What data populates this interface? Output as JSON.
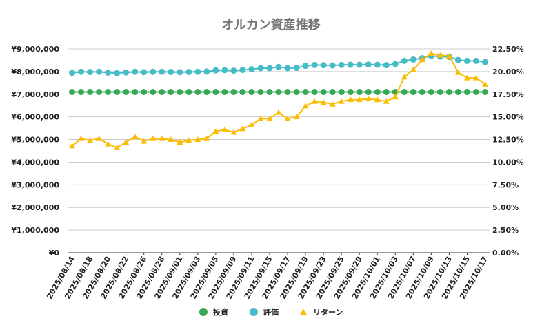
{
  "chart_data": {
    "type": "line",
    "title": "オルカン資産推移",
    "x": [
      "2025/08/14",
      "2025/08/15",
      "2025/08/18",
      "2025/08/19",
      "2025/08/20",
      "2025/08/21",
      "2025/08/22",
      "2025/08/25",
      "2025/08/26",
      "2025/08/27",
      "2025/08/28",
      "2025/08/29",
      "2025/09/01",
      "2025/09/02",
      "2025/09/03",
      "2025/09/04",
      "2025/09/05",
      "2025/09/08",
      "2025/09/09",
      "2025/09/10",
      "2025/09/11",
      "2025/09/12",
      "2025/09/15",
      "2025/09/16",
      "2025/09/17",
      "2025/09/18",
      "2025/09/19",
      "2025/09/22",
      "2025/09/23",
      "2025/09/24",
      "2025/09/25",
      "2025/09/26",
      "2025/09/29",
      "2025/09/30",
      "2025/10/01",
      "2025/10/02",
      "2025/10/03",
      "2025/10/06",
      "2025/10/07",
      "2025/10/08",
      "2025/10/09",
      "2025/10/10",
      "2025/10/13",
      "2025/10/14",
      "2025/10/15",
      "2025/10/16",
      "2025/10/17"
    ],
    "x_tick_labels": [
      "2025/08/14",
      "2025/08/18",
      "2025/08/20",
      "2025/08/22",
      "2025/08/26",
      "2025/08/28",
      "2025/09/01",
      "2025/09/03",
      "2025/09/05",
      "2025/09/09",
      "2025/09/11",
      "2025/09/15",
      "2025/09/17",
      "2025/09/19",
      "2025/09/23",
      "2025/09/25",
      "2025/09/29",
      "2025/10/01",
      "2025/10/03",
      "2025/10/07",
      "2025/10/09",
      "2025/10/13",
      "2025/10/15",
      "2025/10/17"
    ],
    "y_left_ticks": [
      "¥0",
      "¥1,000,000",
      "¥2,000,000",
      "¥3,000,000",
      "¥4,000,000",
      "¥5,000,000",
      "¥6,000,000",
      "¥7,000,000",
      "¥8,000,000",
      "¥9,000,000"
    ],
    "y_right_ticks": [
      "0.00%",
      "2.50%",
      "5.00%",
      "7.50%",
      "10.00%",
      "12.50%",
      "15.00%",
      "17.50%",
      "20.00%",
      "22.50%"
    ],
    "ylim_left": [
      0,
      9000000
    ],
    "ylim_right": [
      0,
      22.5
    ],
    "grid": true,
    "legend_position": "bottom",
    "series": [
      {
        "name": "投資",
        "axis": "left",
        "marker": "circle",
        "color": "#34a853",
        "values": [
          7100000,
          7100000,
          7100000,
          7100000,
          7100000,
          7100000,
          7100000,
          7100000,
          7100000,
          7100000,
          7100000,
          7100000,
          7100000,
          7100000,
          7100000,
          7100000,
          7100000,
          7100000,
          7100000,
          7100000,
          7100000,
          7100000,
          7100000,
          7100000,
          7100000,
          7100000,
          7100000,
          7100000,
          7100000,
          7100000,
          7100000,
          7100000,
          7100000,
          7100000,
          7100000,
          7100000,
          7100000,
          7100000,
          7100000,
          7100000,
          7100000,
          7100000,
          7100000,
          7100000,
          7100000,
          7100000,
          7100000
        ]
      },
      {
        "name": "評価",
        "axis": "left",
        "marker": "circle",
        "color": "#46bdc6",
        "values": [
          7940000,
          7990000,
          7980000,
          7990000,
          7950000,
          7930000,
          7960000,
          7990000,
          7970000,
          7990000,
          7990000,
          7980000,
          7970000,
          7980000,
          7990000,
          8000000,
          8050000,
          8060000,
          8040000,
          8070000,
          8100000,
          8150000,
          8150000,
          8200000,
          8150000,
          8160000,
          8250000,
          8290000,
          8280000,
          8270000,
          8290000,
          8300000,
          8300000,
          8310000,
          8300000,
          8280000,
          8330000,
          8470000,
          8530000,
          8590000,
          8690000,
          8660000,
          8650000,
          8510000,
          8470000,
          8470000,
          8420000
        ]
      },
      {
        "name": "リターン",
        "axis": "right",
        "marker": "triangle",
        "color": "#fbbc04",
        "values": [
          11.8,
          12.6,
          12.4,
          12.6,
          12.0,
          11.6,
          12.2,
          12.8,
          12.3,
          12.6,
          12.6,
          12.5,
          12.2,
          12.4,
          12.5,
          12.6,
          13.4,
          13.6,
          13.3,
          13.7,
          14.1,
          14.8,
          14.8,
          15.5,
          14.8,
          15.0,
          16.2,
          16.7,
          16.6,
          16.4,
          16.7,
          16.9,
          16.9,
          17.0,
          16.9,
          16.7,
          17.2,
          19.4,
          20.2,
          21.3,
          22.0,
          21.8,
          21.7,
          19.9,
          19.3,
          19.3,
          18.6
        ]
      }
    ]
  }
}
